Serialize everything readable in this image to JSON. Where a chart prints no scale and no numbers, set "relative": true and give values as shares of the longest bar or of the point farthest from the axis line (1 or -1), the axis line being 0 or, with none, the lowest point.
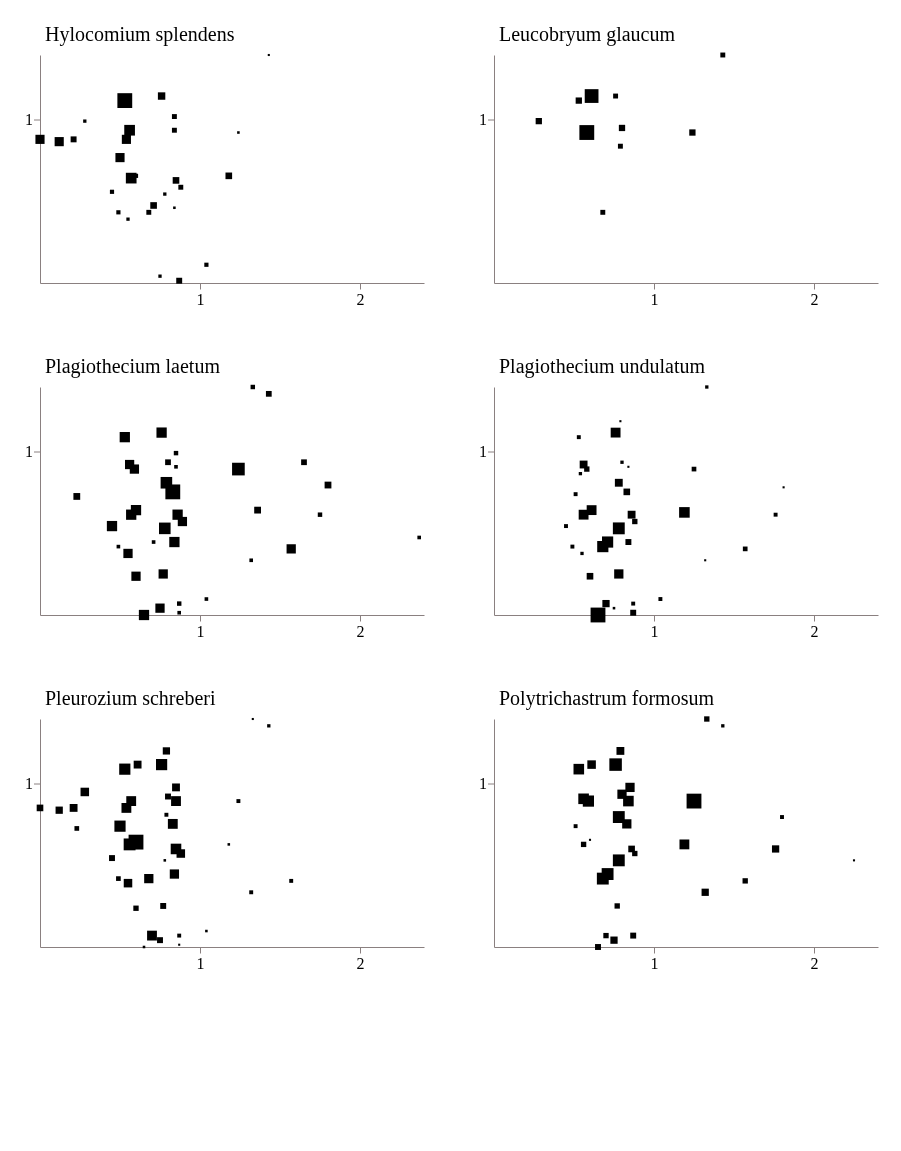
{
  "chart_data": [
    {
      "type": "bubble",
      "title": "Hylocomium splendens",
      "relative": true,
      "xlim": [
        0,
        2.4
      ],
      "xticks": [
        1,
        2
      ],
      "marker": "square",
      "grid": false,
      "legend": false,
      "annotations": [
        "1"
      ],
      "series": [
        {
          "color": "#000000",
          "x": [
            0.53,
            0.76,
            0.84,
            0.84,
            0.28,
            0.56,
            0.0,
            0.12,
            0.21,
            0.54,
            0.5,
            0.57,
            0.6,
            1.24,
            1.18,
            0.85,
            0.88,
            0.78,
            0.45,
            0.71,
            0.68,
            0.84,
            0.49,
            0.55,
            1.04,
            0.75,
            0.87,
            1.43
          ],
          "values": [
            0.8,
            0.82,
            0.73,
            0.67,
            0.71,
            0.67,
            0.63,
            0.62,
            0.63,
            0.63,
            0.55,
            0.46,
            0.47,
            0.66,
            0.47,
            0.45,
            0.42,
            0.39,
            0.4,
            0.34,
            0.31,
            0.33,
            0.31,
            0.28,
            0.08,
            0.03,
            0.01,
            1
          ],
          "sizes": [
            1,
            0.25,
            0.11,
            0.11,
            0.05,
            0.52,
            0.38,
            0.38,
            0.16,
            0.38,
            0.38,
            0.52,
            0.08,
            0.03,
            0.2,
            0.2,
            0.11,
            0.05,
            0.08,
            0.2,
            0.11,
            0.03,
            0.08,
            0.05,
            0.08,
            0.05,
            0.16,
            0.02
          ]
        }
      ]
    },
    {
      "type": "bubble",
      "title": "Leucobryum glaucum",
      "relative": true,
      "xlim": [
        0,
        2.4
      ],
      "xticks": [
        1,
        2
      ],
      "marker": "square",
      "grid": false,
      "legend": false,
      "annotations": [
        "1"
      ],
      "series": [
        {
          "color": "#000000",
          "x": [
            1.43,
            0.61,
            0.53,
            0.76,
            0.28,
            0.58,
            0.8,
            1.24,
            0.79,
            0.68
          ],
          "values": [
            1,
            0.82,
            0.8,
            0.82,
            0.71,
            0.66,
            0.68,
            0.66,
            0.6,
            0.31
          ],
          "sizes": [
            0.11,
            0.86,
            0.18,
            0.11,
            0.18,
            1,
            0.18,
            0.18,
            0.11,
            0.11
          ]
        }
      ]
    },
    {
      "type": "bubble",
      "title": "Plagiothecium laetum",
      "relative": true,
      "xlim": [
        0,
        2.4
      ],
      "xticks": [
        1,
        2
      ],
      "marker": "square",
      "grid": false,
      "legend": false,
      "annotations": [
        "1"
      ],
      "series": [
        {
          "color": "#000000",
          "x": [
            1.33,
            1.43,
            0.53,
            0.76,
            0.85,
            0.8,
            0.85,
            0.56,
            0.59,
            1.24,
            1.65,
            0.79,
            0.83,
            1.8,
            0.23,
            0.6,
            0.57,
            0.86,
            0.89,
            1.36,
            1.75,
            0.45,
            0.78,
            0.84,
            0.71,
            0.49,
            0.55,
            1.57,
            1.32,
            2.37,
            0.6,
            0.77,
            1.04,
            0.87,
            0.87,
            0.75,
            0.65
          ],
          "values": [
            1,
            0.97,
            0.78,
            0.8,
            0.71,
            0.67,
            0.65,
            0.66,
            0.64,
            0.64,
            0.67,
            0.58,
            0.54,
            0.57,
            0.52,
            0.46,
            0.44,
            0.44,
            0.41,
            0.46,
            0.44,
            0.39,
            0.38,
            0.32,
            0.32,
            0.3,
            0.27,
            0.29,
            0.24,
            0.34,
            0.17,
            0.18,
            0.07,
            0.05,
            0.01,
            0.03,
            0
          ],
          "sizes": [
            0.09,
            0.15,
            0.48,
            0.48,
            0.09,
            0.15,
            0.06,
            0.39,
            0.39,
            0.73,
            0.15,
            0.61,
            1,
            0.21,
            0.21,
            0.48,
            0.48,
            0.48,
            0.39,
            0.21,
            0.09,
            0.48,
            0.61,
            0.48,
            0.06,
            0.06,
            0.39,
            0.39,
            0.06,
            0.06,
            0.39,
            0.39,
            0.06,
            0.09,
            0.06,
            0.39,
            0.48
          ]
        }
      ]
    },
    {
      "type": "bubble",
      "title": "Plagiothecium undulatum",
      "relative": true,
      "xlim": [
        0,
        2.4
      ],
      "xticks": [
        1,
        2
      ],
      "marker": "square",
      "grid": false,
      "legend": false,
      "annotations": [
        "1"
      ],
      "series": [
        {
          "color": "#000000",
          "x": [
            1.33,
            0.79,
            0.76,
            0.53,
            0.56,
            0.58,
            0.8,
            0.84,
            0.54,
            1.25,
            0.78,
            0.83,
            0.51,
            1.81,
            0.61,
            0.56,
            1.19,
            0.86,
            0.88,
            1.76,
            0.78,
            0.45,
            0.71,
            0.68,
            0.84,
            0.49,
            0.55,
            1.57,
            1.32,
            0.6,
            0.78,
            1.04,
            0.87,
            0.7,
            0.75,
            0.87,
            0.65
          ],
          "values": [
            1,
            0.85,
            0.8,
            0.78,
            0.66,
            0.64,
            0.67,
            0.65,
            0.62,
            0.64,
            0.58,
            0.54,
            0.53,
            0.56,
            0.46,
            0.44,
            0.45,
            0.44,
            0.41,
            0.44,
            0.38,
            0.39,
            0.32,
            0.3,
            0.32,
            0.3,
            0.27,
            0.29,
            0.24,
            0.17,
            0.18,
            0.07,
            0.05,
            0.05,
            0.03,
            0.01,
            0
          ],
          "sizes": [
            0.05,
            0.02,
            0.44,
            0.07,
            0.28,
            0.13,
            0.05,
            0.02,
            0.05,
            0.1,
            0.28,
            0.2,
            0.07,
            0.02,
            0.44,
            0.44,
            0.51,
            0.28,
            0.13,
            0.07,
            0.64,
            0.07,
            0.57,
            0.57,
            0.16,
            0.07,
            0.05,
            0.1,
            0.02,
            0.2,
            0.39,
            0.07,
            0.07,
            0.24,
            0.03,
            0.16,
            1
          ]
        }
      ]
    },
    {
      "type": "bubble",
      "title": "Pleurozium schreberi",
      "relative": true,
      "xlim": [
        0,
        2.4
      ],
      "xticks": [
        1,
        2
      ],
      "marker": "square",
      "grid": false,
      "legend": false,
      "annotations": [
        "1"
      ],
      "series": [
        {
          "color": "#000000",
          "x": [
            1.33,
            1.43,
            0.79,
            0.76,
            0.61,
            0.53,
            0.28,
            0.85,
            0.8,
            0.85,
            1.24,
            0.57,
            0.54,
            0.0,
            0.12,
            0.21,
            0.23,
            0.5,
            0.79,
            0.83,
            0.6,
            0.56,
            0.85,
            0.88,
            1.18,
            0.45,
            0.78,
            0.84,
            0.68,
            0.49,
            0.55,
            1.57,
            1.32,
            0.6,
            0.77,
            1.04,
            0.87,
            0.87,
            0.7,
            0.75,
            0.65
          ],
          "values": [
            1,
            0.97,
            0.86,
            0.8,
            0.8,
            0.78,
            0.68,
            0.7,
            0.66,
            0.64,
            0.64,
            0.64,
            0.61,
            0.61,
            0.6,
            0.61,
            0.52,
            0.53,
            0.58,
            0.54,
            0.46,
            0.45,
            0.43,
            0.41,
            0.45,
            0.39,
            0.38,
            0.32,
            0.3,
            0.3,
            0.28,
            0.29,
            0.24,
            0.17,
            0.18,
            0.07,
            0.05,
            0.01,
            0.05,
            0.03,
            0
          ],
          "sizes": [
            0.02,
            0.05,
            0.24,
            0.57,
            0.28,
            0.57,
            0.33,
            0.28,
            0.16,
            0.44,
            0.07,
            0.44,
            0.44,
            0.2,
            0.24,
            0.28,
            0.1,
            0.57,
            0.07,
            0.44,
            1,
            0.64,
            0.51,
            0.33,
            0.03,
            0.16,
            0.03,
            0.39,
            0.39,
            0.1,
            0.33,
            0.07,
            0.07,
            0.13,
            0.16,
            0.03,
            0.07,
            0.02,
            0.44,
            0.16,
            0.03
          ]
        }
      ]
    },
    {
      "type": "bubble",
      "title": "Polytrichastrum formosum",
      "relative": true,
      "xlim": [
        0,
        2.4
      ],
      "xticks": [
        1,
        2
      ],
      "marker": "square",
      "grid": false,
      "legend": false,
      "annotations": [
        "1"
      ],
      "series": [
        {
          "color": "#000000",
          "x": [
            1.33,
            1.43,
            0.79,
            0.76,
            0.61,
            0.53,
            0.85,
            0.8,
            0.84,
            1.25,
            0.56,
            0.59,
            1.8,
            0.51,
            0.78,
            0.83,
            0.56,
            0.6,
            1.19,
            1.76,
            0.86,
            0.88,
            0.78,
            2.25,
            0.71,
            0.68,
            1.57,
            1.32,
            0.77,
            0.7,
            0.75,
            0.87,
            0.65
          ],
          "values": [
            1,
            0.97,
            0.86,
            0.8,
            0.8,
            0.78,
            0.7,
            0.67,
            0.64,
            0.64,
            0.65,
            0.64,
            0.57,
            0.53,
            0.57,
            0.54,
            0.45,
            0.47,
            0.45,
            0.43,
            0.43,
            0.41,
            0.38,
            0.38,
            0.32,
            0.3,
            0.29,
            0.24,
            0.18,
            0.05,
            0.03,
            0.05,
            0
          ],
          "sizes": [
            0.13,
            0.05,
            0.28,
            0.71,
            0.33,
            0.51,
            0.39,
            0.39,
            0.51,
            1,
            0.51,
            0.57,
            0.07,
            0.07,
            0.64,
            0.39,
            0.13,
            0.02,
            0.44,
            0.24,
            0.2,
            0.13,
            0.64,
            0.02,
            0.64,
            0.64,
            0.13,
            0.24,
            0.13,
            0.13,
            0.24,
            0.16,
            0.16
          ]
        }
      ]
    }
  ]
}
